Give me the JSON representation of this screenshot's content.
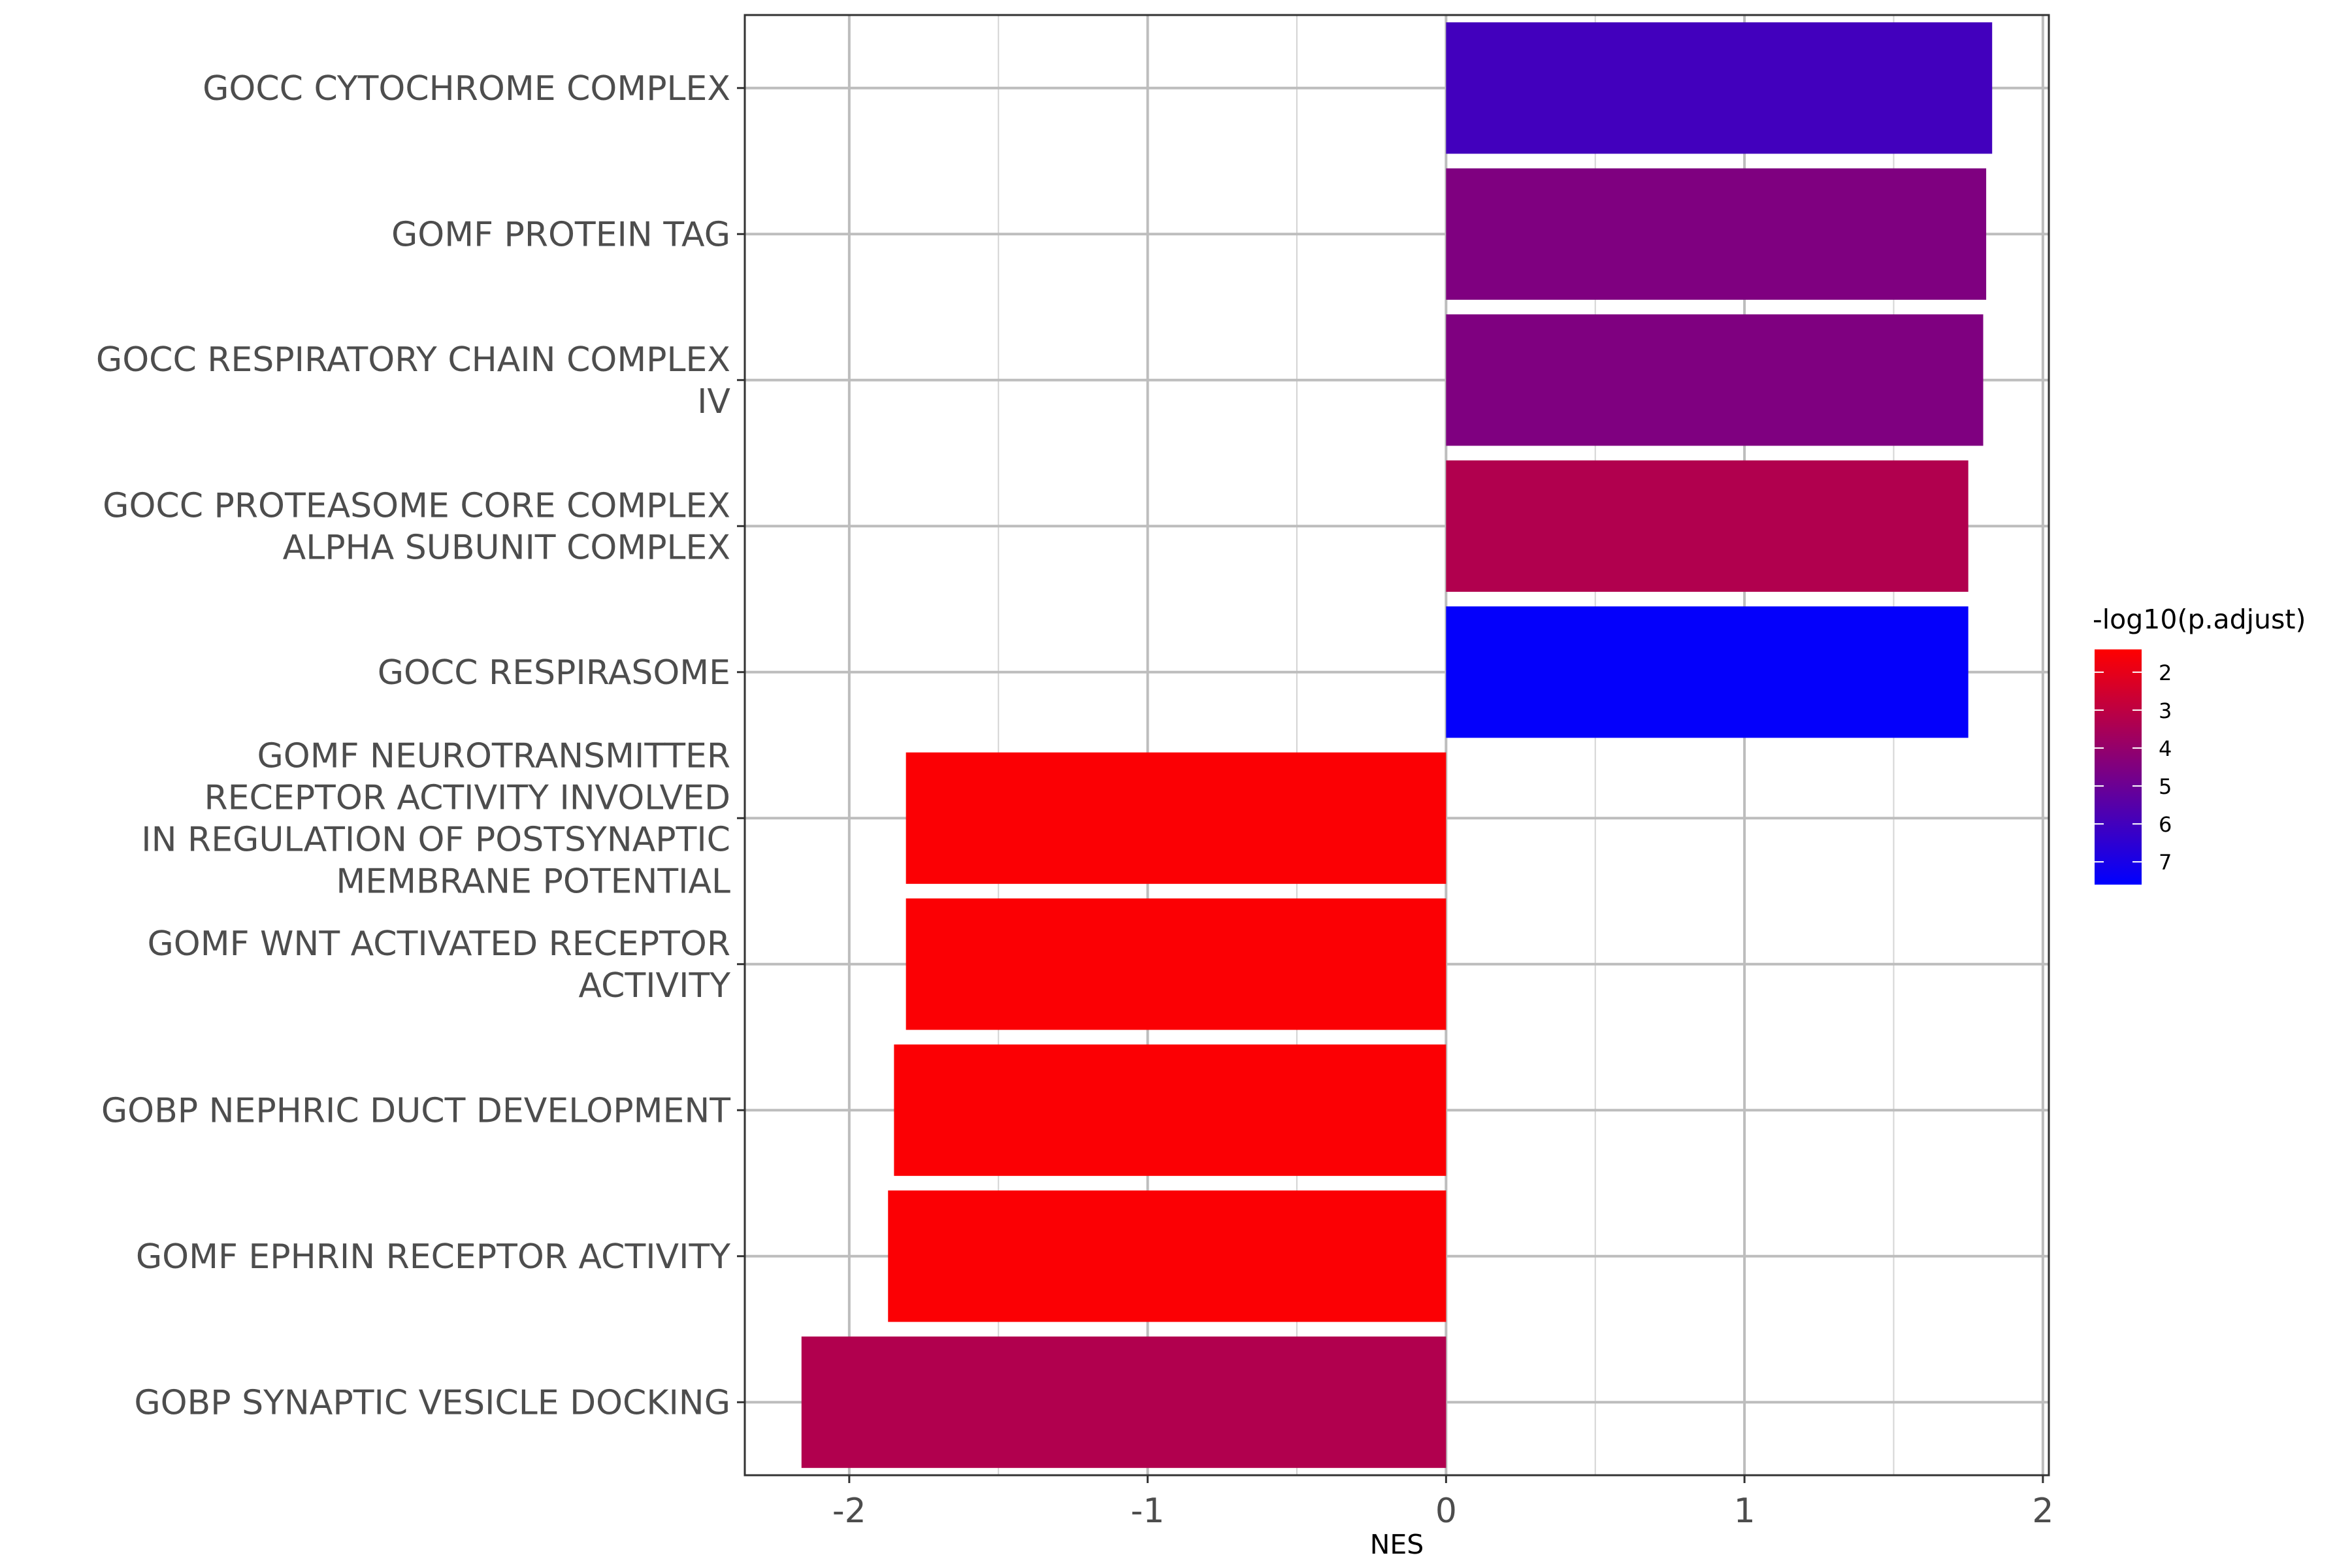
{
  "chart_data": {
    "type": "bar",
    "orientation": "horizontal",
    "xlabel": "NES",
    "xlim": [
      -2.35,
      2.02
    ],
    "xticks": [
      -2,
      -1,
      0,
      1,
      2
    ],
    "xtick_labels": [
      "-2",
      "-1",
      "0",
      "1",
      "2"
    ],
    "grid": true,
    "categories": [
      [
        "GOCC CYTOCHROME COMPLEX"
      ],
      [
        "GOMF PROTEIN TAG"
      ],
      [
        "GOCC RESPIRATORY CHAIN COMPLEX",
        "IV"
      ],
      [
        "GOCC PROTEASOME CORE COMPLEX",
        "ALPHA SUBUNIT COMPLEX"
      ],
      [
        "GOCC RESPIRASOME"
      ],
      [
        "GOMF NEUROTRANSMITTER",
        "RECEPTOR ACTIVITY INVOLVED",
        "IN REGULATION OF POSTSYNAPTIC",
        "MEMBRANE POTENTIAL"
      ],
      [
        "GOMF WNT ACTIVATED RECEPTOR",
        "ACTIVITY"
      ],
      [
        "GOBP NEPHRIC DUCT DEVELOPMENT"
      ],
      [
        "GOMF EPHRIN RECEPTOR ACTIVITY"
      ],
      [
        "GOBP SYNAPTIC VESICLE DOCKING"
      ]
    ],
    "values": [
      1.83,
      1.81,
      1.8,
      1.75,
      1.75,
      -1.81,
      -1.81,
      -1.85,
      -1.87,
      -2.16
    ],
    "color_values": [
      6.0,
      4.5,
      4.5,
      3.3,
      7.5,
      1.5,
      1.5,
      1.5,
      1.5,
      3.3
    ],
    "legend": {
      "title": "-log10(p.adjust)",
      "ticks": [
        2,
        3,
        4,
        5,
        6,
        7
      ],
      "range": [
        1.4,
        7.6
      ],
      "low_color": "#ff0000",
      "high_color": "#0000ff",
      "placement": "right"
    }
  }
}
